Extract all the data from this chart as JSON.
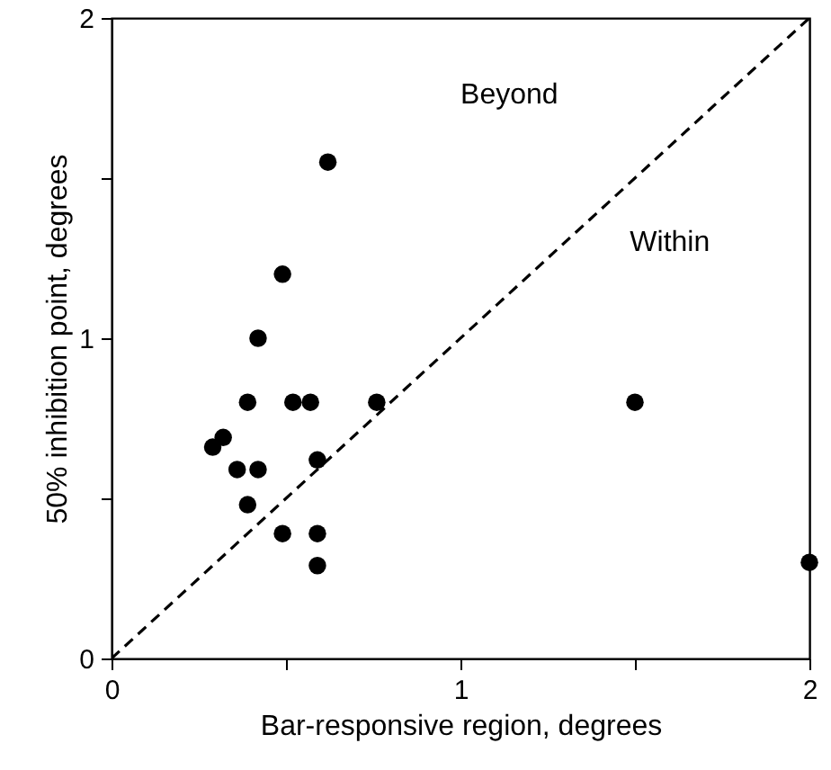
{
  "chart_data": {
    "type": "scatter",
    "xlabel": "Bar-responsive region, degrees",
    "ylabel": "50% inhibition point, degrees",
    "annotations": [
      "Beyond",
      "Within"
    ],
    "series": [
      {
        "color": "#000000",
        "marker": "circle",
        "x": [
          0.62,
          0.49,
          0.42,
          0.39,
          0.52,
          0.57,
          0.76,
          0.32,
          0.29,
          0.36,
          0.42,
          0.59,
          0.39,
          0.49,
          0.59,
          0.59,
          1.5,
          2.0
        ],
        "values": [
          1.55,
          1.2,
          1.0,
          0.8,
          0.8,
          0.8,
          0.8,
          0.69,
          0.66,
          0.59,
          0.59,
          0.62,
          0.48,
          0.39,
          0.39,
          0.29,
          0.8,
          0.3
        ]
      },
      {
        "type": "line",
        "color": "#000000",
        "line_style": "dashed",
        "x": [
          0,
          2
        ],
        "values": [
          0,
          2
        ]
      }
    ],
    "xlim": [
      0,
      2
    ],
    "ylim": [
      0,
      2
    ],
    "xticks": [
      0,
      {
        "value": 0.5,
        "label": null
      },
      1,
      {
        "value": 1.5,
        "label": null
      },
      2
    ],
    "yticks": [
      0,
      {
        "value": 0.5,
        "label": null
      },
      1,
      {
        "value": 1.5,
        "label": null
      },
      2
    ],
    "grid": false
  }
}
